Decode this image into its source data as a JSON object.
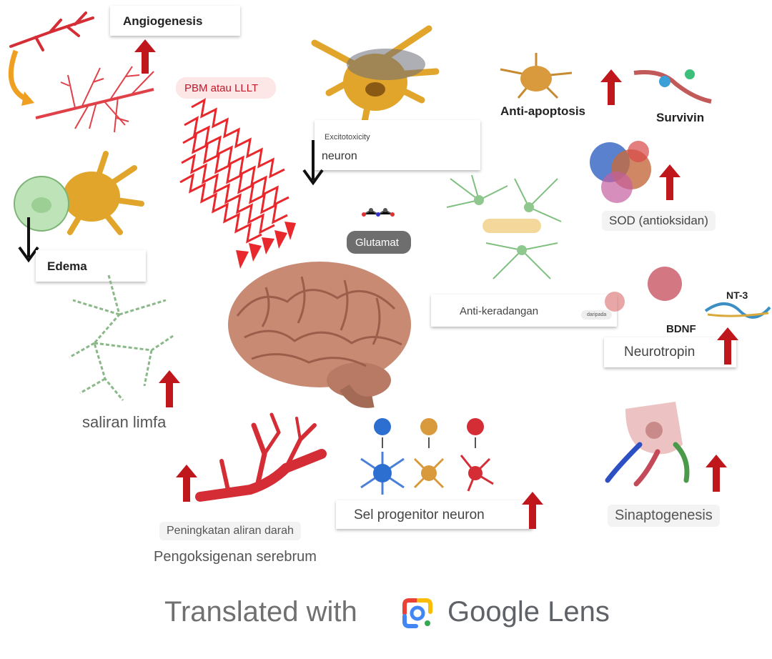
{
  "colors": {
    "up_arrow": "#c0171d",
    "down_arrow": "#111111",
    "laser": "#e8282c",
    "vessel": "#d42d35",
    "neuron": "#e0a52a",
    "glia": "#8fc48c",
    "brain": "#c98a74",
    "lymph": "#8ab888"
  },
  "labels": {
    "angiogenesis": "Angiogenesis",
    "pbm": "PBM atau LLLT",
    "excitotoxicity": "Excitotoxicity",
    "neuron": "neuron",
    "anti_apoptosis": "Anti-apoptosis",
    "survivin": "Survivin",
    "sod": "SOD (antioksidan)",
    "edema": "Edema",
    "glutamat": "Glutamat",
    "anti_keradangan": "Anti-keradangan",
    "daripada": "daripada",
    "bdnf": "BDNF",
    "nt3": "NT-3",
    "neurotropin": "Neurotropin",
    "saliran_limfa": "saliran limfa",
    "sel_progenitor": "Sel progenitor neuron",
    "sinaptogenesis": "Sinaptogenesis",
    "peningkatan": "Peningkatan aliran darah",
    "pengoksigenan": "Pengoksigenan serebrum"
  },
  "footer": {
    "prefix": "Translated with",
    "brand": "Google Lens"
  },
  "icons": [
    "up-arrow-icon",
    "down-arrow-icon",
    "google-lens-icon",
    "brain-icon",
    "laser-beam-icon",
    "neuron-icon",
    "blood-vessel-icon"
  ]
}
